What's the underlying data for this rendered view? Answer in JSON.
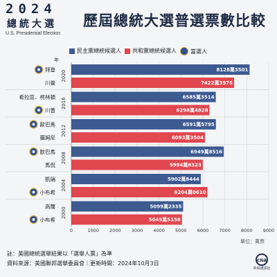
{
  "header": {
    "logo_year": "2024",
    "logo_title": "總統大選",
    "logo_subtitle": "U.S. Presidential Election",
    "title": "歷屆總統大選普選票數比較"
  },
  "legend": {
    "dem": "民主黨總統候選人",
    "rep": "共和黨總統候選人",
    "winner": "當選人"
  },
  "year_axis_label": "年",
  "unit": "單位：萬票",
  "footnotes": [
    "註：美國總統選舉結果以「選舉人票」為準",
    "資料來源：美國聯邦選舉委員會｜更新時間：2024年10月3日"
  ],
  "agency_logo": {
    "mark": "CNA",
    "name": "中央通訊社"
  },
  "colors": {
    "dem": "#3d5a91",
    "rep": "#e0474f",
    "seal": "#2f4f8f",
    "seal_ring": "#c9a63c"
  },
  "chart_data": {
    "type": "bar",
    "orientation": "horizontal",
    "title": "歷屆總統大選普選票數比較",
    "xlim": [
      0,
      9000
    ],
    "x_ticks": [
      0,
      1000,
      2000,
      3000,
      4000,
      5000,
      6000,
      7000,
      8000,
      9000
    ],
    "unit": "萬票",
    "grid": true,
    "groups": [
      {
        "year": "2020",
        "bars": [
          {
            "candidate": "拜登",
            "party": "dem",
            "value": 8128.3501,
            "label": "8128萬3501",
            "winner": true
          },
          {
            "candidate": "川普",
            "party": "rep",
            "value": 7422.3975,
            "label": "7422萬3975",
            "winner": false
          }
        ]
      },
      {
        "year": "2016",
        "bars": [
          {
            "candidate": "希拉蕊．柯林頓",
            "party": "dem",
            "value": 6585.3514,
            "label": "6585萬3514",
            "winner": false
          },
          {
            "candidate": "川普",
            "party": "rep",
            "value": 6298.4828,
            "label": "6298萬4828",
            "winner": true
          }
        ]
      },
      {
        "year": "2012",
        "bars": [
          {
            "candidate": "歐巴馬",
            "party": "dem",
            "value": 6591.5795,
            "label": "6591萬5795",
            "winner": true
          },
          {
            "candidate": "羅姆尼",
            "party": "rep",
            "value": 6093.3504,
            "label": "6093萬3504",
            "winner": false
          }
        ]
      },
      {
        "year": "2008",
        "bars": [
          {
            "candidate": "歐巴馬",
            "party": "dem",
            "value": 6949.8516,
            "label": "6949萬8516",
            "winner": true
          },
          {
            "candidate": "馬侃",
            "party": "rep",
            "value": 5994.8323,
            "label": "5994萬8323",
            "winner": false
          }
        ]
      },
      {
        "year": "2004",
        "bars": [
          {
            "candidate": "凱瑞",
            "party": "dem",
            "value": 5902.8444,
            "label": "5902萬8444",
            "winner": false
          },
          {
            "candidate": "小布希",
            "party": "rep",
            "value": 6204.061,
            "label": "6204萬0610",
            "winner": true
          }
        ]
      },
      {
        "year": "2000",
        "bars": [
          {
            "candidate": "高爾",
            "party": "dem",
            "value": 5099.2335,
            "label": "5099萬2335",
            "winner": false
          },
          {
            "candidate": "小布希",
            "party": "rep",
            "value": 5045.5156,
            "label": "5045萬5156",
            "winner": true
          }
        ]
      }
    ]
  }
}
